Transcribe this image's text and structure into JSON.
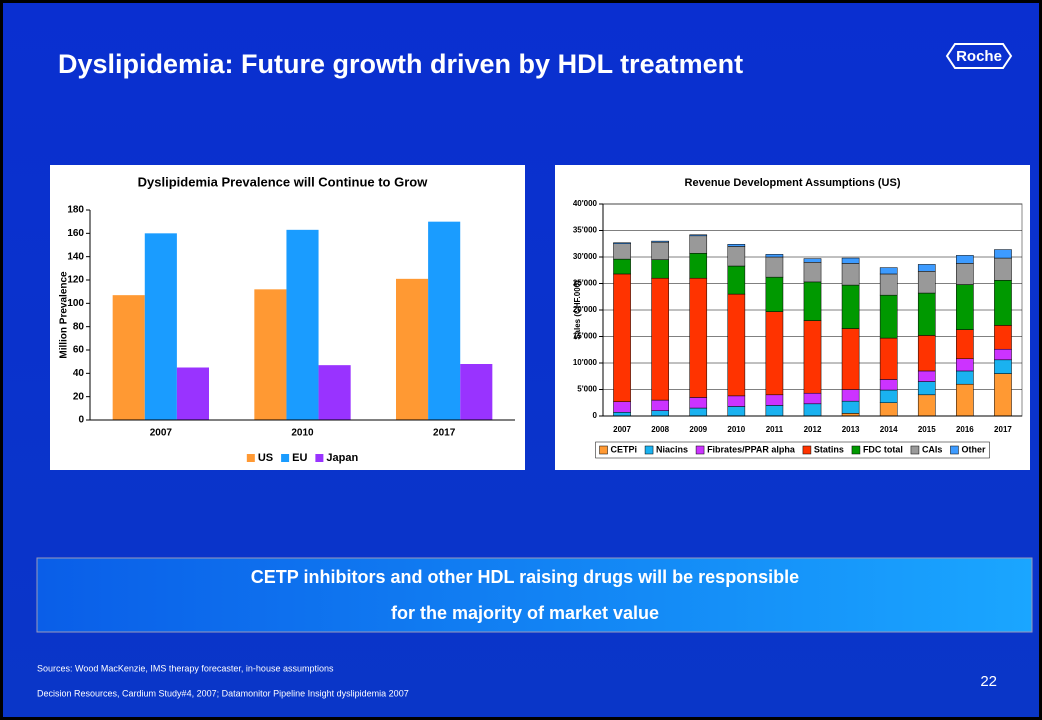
{
  "title": "Dyslipidemia: Future growth driven by HDL treatment",
  "logo": "Roche",
  "chart_data": [
    {
      "type": "bar",
      "title": "Dyslipidemia Prevalence will Continue to Grow",
      "y_label": "Million Prevalence",
      "categories": [
        "2007",
        "2010",
        "2017"
      ],
      "series": [
        {
          "name": "US",
          "color": "#ff9933",
          "values": [
            107,
            112,
            121
          ]
        },
        {
          "name": "EU",
          "color": "#1a9cff",
          "values": [
            160,
            163,
            170
          ]
        },
        {
          "name": "Japan",
          "color": "#9933ff",
          "values": [
            45,
            47,
            48
          ]
        }
      ],
      "ylim": [
        0,
        180
      ],
      "yticks": [
        0,
        20,
        40,
        60,
        80,
        100,
        120,
        140,
        160,
        180
      ],
      "grid": false,
      "stacked": false,
      "legend": "bottom"
    },
    {
      "type": "bar",
      "title": "Revenue Development Assumptions (US)",
      "y_label": "Sales (CHF.000)",
      "categories": [
        "2007",
        "2008",
        "2009",
        "2010",
        "2011",
        "2012",
        "2013",
        "2014",
        "2015",
        "2016",
        "2017"
      ],
      "series": [
        {
          "name": "CETPi",
          "color": "#ff9933",
          "values": [
            0,
            0,
            0,
            0,
            0,
            0,
            500,
            2500,
            4000,
            6000,
            8000
          ]
        },
        {
          "name": "Niacins",
          "color": "#1ab2f0",
          "values": [
            700,
            1000,
            1500,
            1800,
            2000,
            2300,
            2300,
            2400,
            2500,
            2500,
            2600
          ]
        },
        {
          "name": "Fibrates/PPAR alpha",
          "color": "#cc33ff",
          "values": [
            2000,
            2000,
            2000,
            2000,
            2000,
            2000,
            2200,
            2000,
            2000,
            2300,
            2000
          ]
        },
        {
          "name": "Statins",
          "color": "#ff3300",
          "values": [
            24100,
            23000,
            22500,
            19200,
            15700,
            13700,
            11500,
            7800,
            6700,
            5500,
            4500
          ]
        },
        {
          "name": "FDC total",
          "color": "#009900",
          "values": [
            2800,
            3500,
            4700,
            5300,
            6500,
            7300,
            8200,
            8100,
            8000,
            8500,
            8500
          ]
        },
        {
          "name": "CAIs",
          "color": "#999999",
          "values": [
            2900,
            3300,
            3300,
            3700,
            3800,
            3700,
            4100,
            4000,
            4100,
            4000,
            4200
          ]
        },
        {
          "name": "Other",
          "color": "#3d9bff",
          "values": [
            200,
            200,
            200,
            400,
            500,
            700,
            1000,
            1200,
            1300,
            1500,
            1600
          ]
        }
      ],
      "ylim": [
        0,
        40000
      ],
      "yticks": [
        0,
        {
          "value": 5000,
          "label": "5'000"
        },
        {
          "value": 10000,
          "label": "10'000"
        },
        {
          "value": 15000,
          "label": "15'000"
        },
        {
          "value": 20000,
          "label": "20'000"
        },
        {
          "value": 25000,
          "label": "25'000"
        },
        {
          "value": 30000,
          "label": "30'000"
        },
        {
          "value": 35000,
          "label": "35'000"
        },
        {
          "value": 40000,
          "label": "40'000"
        }
      ],
      "grid": true,
      "stacked": true,
      "legend": "bottom"
    }
  ],
  "banner": [
    "CETP inhibitors and other HDL raising drugs will be responsible",
    "for the majority of market value"
  ],
  "sources": [
    "Sources: Wood MacKenzie, IMS therapy forecaster, in-house assumptions",
    "Decision Resources, Cardium Study#4, 2007; Datamonitor Pipeline Insight dyslipidemia 2007"
  ],
  "page_number": "22"
}
